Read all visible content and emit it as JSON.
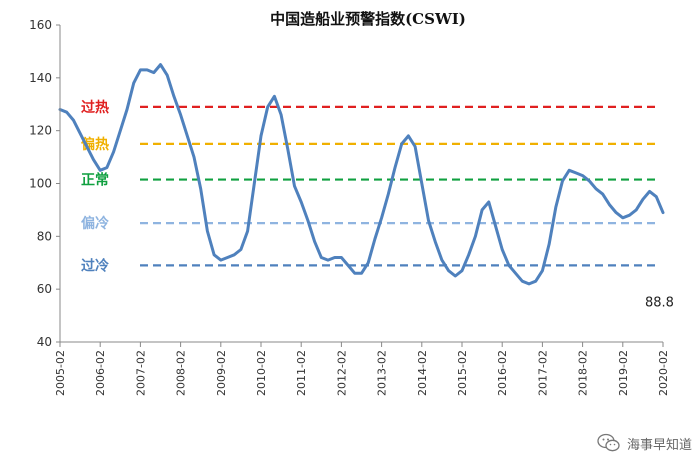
{
  "chart_data": {
    "type": "line",
    "title": "中国造船业预警指数(CSWI)",
    "ylim": [
      40,
      160
    ],
    "yticks": [
      40,
      60,
      80,
      100,
      120,
      140,
      160
    ],
    "xlim": [
      "2005-02",
      "2020-02"
    ],
    "xticks": [
      "2005-02",
      "2006-02",
      "2007-02",
      "2008-02",
      "2009-02",
      "2010-02",
      "2011-02",
      "2012-02",
      "2013-02",
      "2014-02",
      "2015-02",
      "2016-02",
      "2017-02",
      "2018-02",
      "2019-02",
      "2020-02"
    ],
    "grid": false,
    "series": [
      {
        "color": "#4f81bd",
        "x": [
          "2005-02",
          "2005-04",
          "2005-06",
          "2005-08",
          "2005-10",
          "2005-12",
          "2006-02",
          "2006-04",
          "2006-06",
          "2006-08",
          "2006-10",
          "2006-12",
          "2007-02",
          "2007-04",
          "2007-06",
          "2007-08",
          "2007-10",
          "2007-12",
          "2008-02",
          "2008-04",
          "2008-06",
          "2008-08",
          "2008-10",
          "2008-12",
          "2009-02",
          "2009-04",
          "2009-06",
          "2009-08",
          "2009-10",
          "2009-12",
          "2010-02",
          "2010-04",
          "2010-06",
          "2010-08",
          "2010-10",
          "2010-12",
          "2011-02",
          "2011-04",
          "2011-06",
          "2011-08",
          "2011-10",
          "2011-12",
          "2012-02",
          "2012-04",
          "2012-06",
          "2012-08",
          "2012-10",
          "2012-12",
          "2013-02",
          "2013-04",
          "2013-06",
          "2013-08",
          "2013-10",
          "2013-12",
          "2014-02",
          "2014-04",
          "2014-06",
          "2014-08",
          "2014-10",
          "2014-12",
          "2015-02",
          "2015-04",
          "2015-06",
          "2015-08",
          "2015-10",
          "2015-12",
          "2016-02",
          "2016-04",
          "2016-06",
          "2016-08",
          "2016-10",
          "2016-12",
          "2017-02",
          "2017-04",
          "2017-06",
          "2017-08",
          "2017-10",
          "2017-12",
          "2018-02",
          "2018-04",
          "2018-06",
          "2018-08",
          "2018-10",
          "2018-12",
          "2019-02",
          "2019-04",
          "2019-06",
          "2019-08",
          "2019-10",
          "2019-12",
          "2020-02"
        ],
        "values": [
          128,
          127,
          124,
          119,
          114,
          109,
          105,
          106,
          112,
          120,
          128,
          138,
          143,
          143,
          142,
          145,
          141,
          133,
          126,
          118,
          110,
          98,
          82,
          73,
          71,
          72,
          73,
          75,
          82,
          100,
          118,
          129,
          133,
          126,
          113,
          99,
          93,
          86,
          78,
          72,
          71,
          72,
          72,
          69,
          66,
          66,
          70,
          79,
          87,
          96,
          106,
          115,
          118,
          114,
          100,
          86,
          78,
          71,
          67,
          65,
          67,
          73,
          80,
          90,
          93,
          84,
          75,
          69,
          66,
          63,
          62,
          63,
          67,
          77,
          91,
          101,
          105,
          104,
          103,
          101,
          98,
          96,
          92,
          89,
          87,
          88,
          90,
          94,
          97,
          95,
          89
        ]
      }
    ],
    "reference_lines": [
      {
        "label": "过热",
        "value": 129,
        "color": "#e02020"
      },
      {
        "label": "偏热",
        "value": 115,
        "color": "#f0b000"
      },
      {
        "label": "正常",
        "value": 101.5,
        "color": "#10a040"
      },
      {
        "label": "偏冷",
        "value": 85,
        "color": "#8fb4e0"
      },
      {
        "label": "过冷",
        "value": 69,
        "color": "#4f81bd"
      }
    ],
    "end_label": "88.8"
  },
  "watermark": {
    "text": "海事早知道",
    "icon": "wechat-icon"
  }
}
